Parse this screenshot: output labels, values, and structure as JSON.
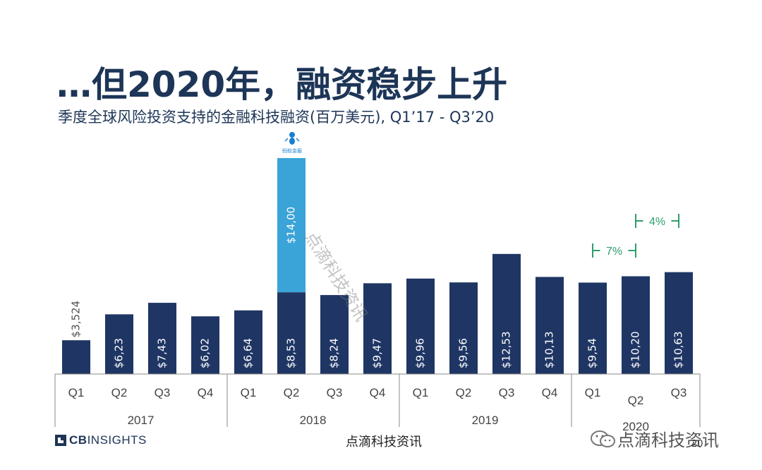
{
  "page": {
    "title": "…但2020年，融资稳步上升",
    "subtitle": "季度全球风险投资支持的金融科技融资(百万美元), Q1’17 -  Q3’20",
    "logo_text_bold": "CB",
    "logo_text": "INSIGHTS",
    "footer_center": "点滴科技资讯",
    "wechat_label": "点滴科技资讯",
    "page_number": "20",
    "watermark": "点滴科技资讯",
    "ant_logo_text": "蚂蚁金服"
  },
  "colors": {
    "bar": "#1f3664",
    "highlight": "#3aa3d8",
    "accent_green": "#2e9e6a",
    "title": "#1d3557"
  },
  "chart_data": {
    "type": "bar",
    "title": "",
    "ylim": [
      0,
      23000
    ],
    "bars": [
      {
        "quarter": "Q1",
        "year": "2017",
        "value": 3524,
        "label": "$3,524"
      },
      {
        "quarter": "Q2",
        "year": "2017",
        "value": 6230,
        "label": "$6,23"
      },
      {
        "quarter": "Q3",
        "year": "2017",
        "value": 7430,
        "label": "$7,43"
      },
      {
        "quarter": "Q4",
        "year": "2017",
        "value": 6020,
        "label": "$6,02"
      },
      {
        "quarter": "Q1",
        "year": "2018",
        "value": 6640,
        "label": "$6,64"
      },
      {
        "quarter": "Q2",
        "year": "2018",
        "value": 22530,
        "base": 8530,
        "extra": 14000,
        "label": "$8,53",
        "extra_label": "$14,00"
      },
      {
        "quarter": "Q3",
        "year": "2018",
        "value": 8240,
        "label": "$8,24"
      },
      {
        "quarter": "Q4",
        "year": "2018",
        "value": 9470,
        "label": "$9,47"
      },
      {
        "quarter": "Q1",
        "year": "2019",
        "value": 9960,
        "label": "$9,96"
      },
      {
        "quarter": "Q2",
        "year": "2019",
        "value": 9560,
        "label": "$9,56"
      },
      {
        "quarter": "Q3",
        "year": "2019",
        "value": 12530,
        "label": "$12,53"
      },
      {
        "quarter": "Q4",
        "year": "2019",
        "value": 10130,
        "label": "$10,13"
      },
      {
        "quarter": "Q1",
        "year": "2020",
        "value": 9540,
        "label": "$9,54"
      },
      {
        "quarter": "Q2",
        "year": "2020",
        "value": 10200,
        "label": "$10,20"
      },
      {
        "quarter": "Q3",
        "year": "2020",
        "value": 10630,
        "label": "$10,63"
      }
    ],
    "years": [
      "2017",
      "2018",
      "2019",
      "2020"
    ],
    "annotations": [
      {
        "text": "7%",
        "from_index": 12,
        "to_index": 13
      },
      {
        "text": "4%",
        "from_index": 13,
        "to_index": 14
      }
    ]
  }
}
